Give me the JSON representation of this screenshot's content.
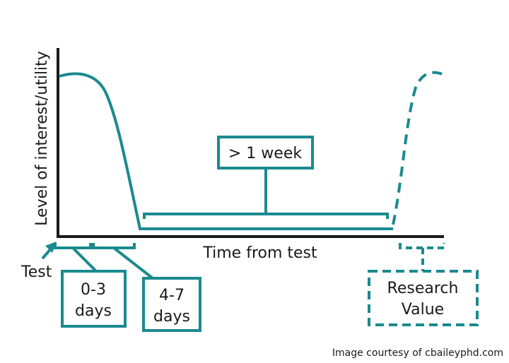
{
  "axes": {
    "y_label": "Level of interest/utility",
    "x_label": "Time from test",
    "origin_label": "Test"
  },
  "phases": {
    "early": {
      "line1": "0-3",
      "line2": "days"
    },
    "mid": {
      "line1": "4-7",
      "line2": "days"
    },
    "long": {
      "label": "> 1 week"
    },
    "research": {
      "line1": "Research",
      "line2": "Value"
    }
  },
  "credit": "Image courtesy of cbaileyphd.com",
  "colors": {
    "accent": "#1a8a8f",
    "text": "#1a1a1a",
    "background": "#ffffff"
  }
}
